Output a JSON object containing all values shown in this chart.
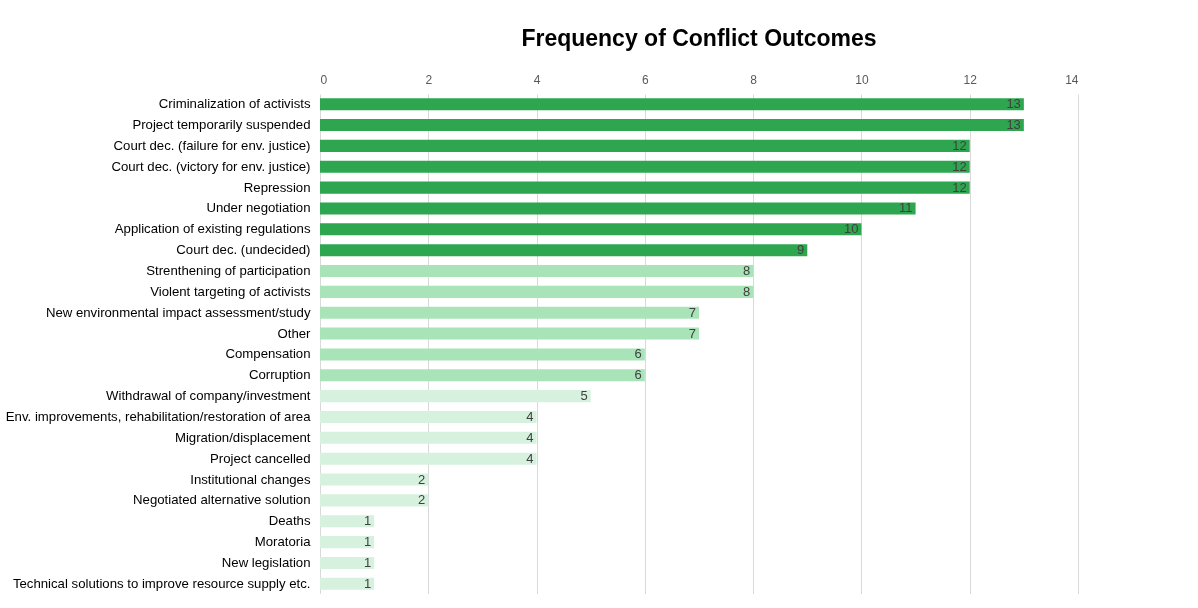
{
  "chart_data": {
    "type": "bar",
    "orientation": "horizontal",
    "title": "Frequency of Conflict Outcomes",
    "categories": [
      "Criminalization of activists",
      "Project temporarily suspended",
      "Court dec. (failure for env. justice)",
      "Court dec. (victory for env. justice)",
      "Repression",
      "Under negotiation",
      "Application of existing regulations",
      "Court dec. (undecided)",
      "Strenthening of participation",
      "Violent targeting of activists",
      "New environmental impact assessment/study",
      "Other",
      "Compensation",
      "Corruption",
      "Withdrawal of company/investment",
      "Env. improvements, rehabilitation/restoration of area",
      "Migration/displacement",
      "Project cancelled",
      "Institutional changes",
      "Negotiated alternative solution",
      "Deaths",
      "Moratoria",
      "New legislation",
      "Technical solutions to improve resource supply etc."
    ],
    "values": [
      13,
      13,
      12,
      12,
      12,
      11,
      10,
      9,
      8,
      8,
      7,
      7,
      6,
      6,
      5,
      4,
      4,
      4,
      2,
      2,
      1,
      1,
      1,
      1
    ],
    "colors": [
      "#2ea64f",
      "#2ea64f",
      "#2ea64f",
      "#2ea64f",
      "#2ea64f",
      "#2ea64f",
      "#2ea64f",
      "#2ea64f",
      "#a8e4b8",
      "#a8e4b8",
      "#a8e4b8",
      "#a8e4b8",
      "#a8e4b8",
      "#a8e4b8",
      "#d6f2de",
      "#d6f2de",
      "#d6f2de",
      "#d6f2de",
      "#d6f2de",
      "#d6f2de",
      "#d6f2de",
      "#d6f2de",
      "#d6f2de",
      "#d6f2de"
    ],
    "xlim": [
      0,
      14
    ],
    "xticks": [
      0,
      2,
      4,
      6,
      8,
      10,
      12,
      14
    ],
    "grid": "x",
    "data_labels": true
  }
}
